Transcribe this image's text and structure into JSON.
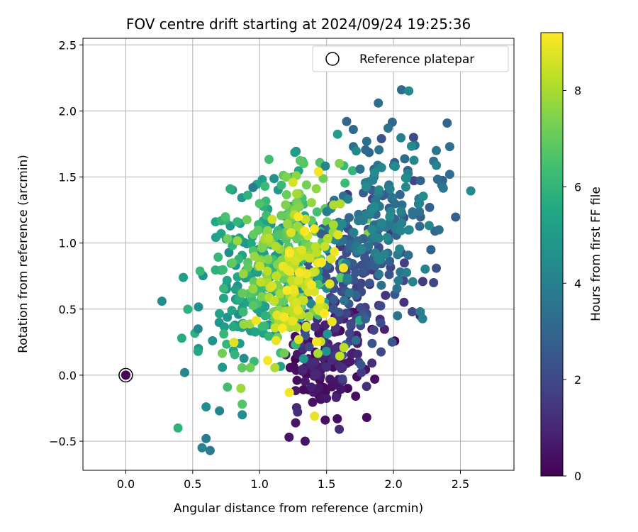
{
  "chart_data": {
    "type": "scatter",
    "title": "FOV centre drift starting at 2024/09/24 19:25:36",
    "xlabel": "Angular distance from reference (arcmin)",
    "ylabel": "Rotation from reference (arcmin)",
    "xlim": [
      -0.32,
      2.9
    ],
    "ylim": [
      -0.72,
      2.55
    ],
    "x_ticks": [
      "0.0",
      "0.5",
      "1.0",
      "1.5",
      "2.0",
      "2.5"
    ],
    "y_ticks": [
      "−0.5",
      "0.0",
      "0.5",
      "1.0",
      "1.5",
      "2.0",
      "2.5"
    ],
    "grid": true,
    "legend": {
      "placement": "top-right",
      "label": "Reference platepar"
    },
    "reference_point": {
      "x": 0.0,
      "y": 0.0
    },
    "colorbar": {
      "label": "Hours from first FF file",
      "colormap": "viridis",
      "range": [
        0,
        9.2
      ],
      "ticks": [
        "0",
        "2",
        "4",
        "6",
        "8"
      ]
    },
    "series_shape": {
      "point_count": 1000,
      "hours_range": [
        0,
        9.2
      ],
      "note_hidden": true
    },
    "points": [
      [
        2.06,
        2.16,
        3.2
      ],
      [
        1.65,
        1.92,
        3.0
      ],
      [
        1.7,
        1.86,
        3.1
      ],
      [
        1.96,
        1.87,
        3.5
      ],
      [
        2.15,
        1.8,
        2.0
      ],
      [
        2.42,
        1.73,
        3.4
      ],
      [
        2.32,
        1.7,
        3.6
      ],
      [
        2.16,
        1.74,
        3.3
      ],
      [
        1.8,
        1.77,
        3.4
      ],
      [
        1.91,
        1.79,
        2.3
      ],
      [
        2.42,
        1.52,
        3.3
      ],
      [
        2.3,
        1.62,
        3.5
      ],
      [
        1.32,
        1.62,
        6.1
      ],
      [
        1.45,
        1.61,
        6.6
      ],
      [
        1.47,
        1.58,
        6.8
      ],
      [
        1.44,
        1.54,
        9.1
      ],
      [
        1.2,
        1.5,
        7.4
      ],
      [
        1.25,
        1.46,
        8.6
      ],
      [
        1.04,
        1.43,
        6.2
      ],
      [
        0.95,
        1.42,
        3.8
      ],
      [
        1.02,
        1.48,
        5.2
      ],
      [
        0.78,
        1.41,
        5.8
      ],
      [
        0.43,
        0.74,
        5.2
      ],
      [
        0.27,
        0.56,
        4.4
      ],
      [
        0.54,
        0.35,
        4.2
      ],
      [
        0.54,
        0.18,
        5.5
      ],
      [
        0.44,
        0.02,
        4.2
      ],
      [
        0.0,
        0.0,
        0.2
      ],
      [
        0.39,
        -0.4,
        5.9
      ],
      [
        0.6,
        -0.24,
        4.4
      ],
      [
        0.57,
        -0.55,
        4.1
      ],
      [
        0.6,
        -0.48,
        3.8
      ],
      [
        0.63,
        -0.57,
        3.7
      ],
      [
        0.7,
        -0.27,
        4.2
      ],
      [
        0.76,
        -0.09,
        6.4
      ],
      [
        0.86,
        -0.1,
        7.8
      ],
      [
        0.87,
        -0.3,
        4.4
      ],
      [
        0.87,
        -0.22,
        6.7
      ],
      [
        1.22,
        -0.47,
        0.5
      ],
      [
        1.34,
        -0.5,
        0.5
      ],
      [
        1.41,
        -0.31,
        8.9
      ],
      [
        1.49,
        -0.34,
        0.4
      ],
      [
        1.58,
        -0.33,
        0.4
      ],
      [
        1.8,
        -0.32,
        0.3
      ],
      [
        1.84,
        0.24,
        2.4
      ],
      [
        2.2,
        0.45,
        0.8
      ],
      [
        2.2,
        0.48,
        3.8
      ],
      [
        2.3,
        0.7,
        1.9
      ],
      [
        2.32,
        0.81,
        2.2
      ],
      [
        2.28,
        0.95,
        2.8
      ],
      [
        2.31,
        1.09,
        3.0
      ],
      [
        2.27,
        1.27,
        2.9
      ],
      [
        2.34,
        1.1,
        3.4
      ],
      [
        1.99,
        0.25,
        2.5
      ],
      [
        2.14,
        0.48,
        2.0
      ],
      [
        2.03,
        0.45,
        3.5
      ],
      [
        1.86,
        -0.03,
        0.4
      ],
      [
        1.61,
        0.05,
        1.2
      ],
      [
        1.73,
        0.24,
        0.7
      ],
      [
        1.76,
        0.02,
        1.5
      ]
    ]
  }
}
